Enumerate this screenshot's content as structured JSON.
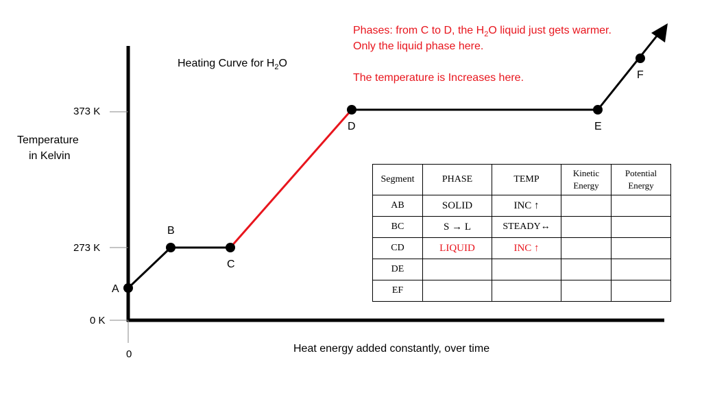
{
  "title": {
    "main": "Heating Curve for H",
    "sub": "2",
    "tail": "O"
  },
  "note": {
    "line1_a": "Phases:  from C to D, the H",
    "line1_sub": "2",
    "line1_b": "O liquid just gets warmer.",
    "line2": "Only the liquid phase here.",
    "line3": "The temperature is Increases here."
  },
  "y_axis": {
    "label_line1": "Temperature",
    "label_line2": "in Kelvin",
    "ticks": [
      "373 K",
      "273 K",
      "0 K"
    ]
  },
  "x_axis": {
    "label": "Heat energy added constantly, over time",
    "origin": "0"
  },
  "points": [
    "A",
    "B",
    "C",
    "D",
    "E",
    "F"
  ],
  "colors": {
    "highlight": "#e8151d",
    "line": "#000000"
  },
  "table": {
    "headers": [
      "Segment",
      "PHASE",
      "TEMP",
      "Kinetic Energy",
      "Potential Energy"
    ],
    "rows": [
      {
        "seg": "AB",
        "phase": "SOLID",
        "temp": "INC ↑",
        "ke": "",
        "pe": ""
      },
      {
        "seg": "BC",
        "phase": "S → L",
        "temp": "STEADY↔",
        "ke": "",
        "pe": ""
      },
      {
        "seg": "CD",
        "phase": "LIQUID",
        "temp": "INC ↑",
        "ke": "",
        "pe": ""
      },
      {
        "seg": "DE",
        "phase": "",
        "temp": "",
        "ke": "",
        "pe": ""
      },
      {
        "seg": "EF",
        "phase": "",
        "temp": "",
        "ke": "",
        "pe": ""
      }
    ]
  }
}
